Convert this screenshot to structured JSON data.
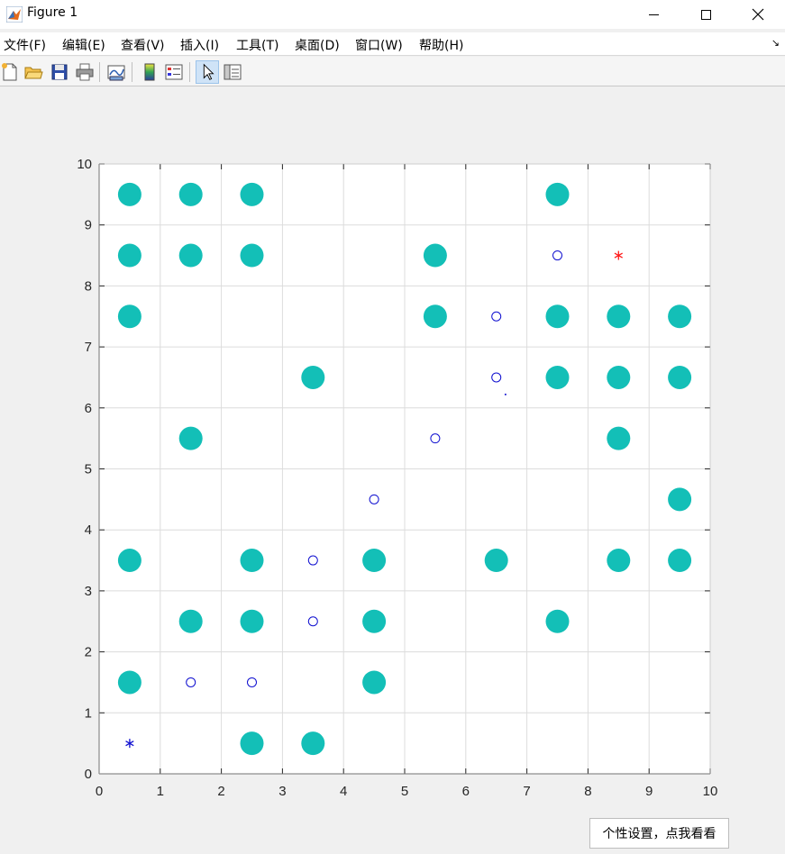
{
  "window": {
    "title": "Figure 1"
  },
  "menu": [
    {
      "label": "文件(F)",
      "name": "menu-file"
    },
    {
      "label": "编辑(E)",
      "name": "menu-edit"
    },
    {
      "label": "查看(V)",
      "name": "menu-view"
    },
    {
      "label": "插入(I)",
      "name": "menu-insert"
    },
    {
      "label": "工具(T)",
      "name": "menu-tools"
    },
    {
      "label": "桌面(D)",
      "name": "menu-desktop"
    },
    {
      "label": "窗口(W)",
      "name": "menu-window"
    },
    {
      "label": "帮助(H)",
      "name": "menu-help"
    }
  ],
  "toolbar": [
    {
      "icon": "new-figure-icon"
    },
    {
      "icon": "open-file-icon"
    },
    {
      "icon": "save-icon"
    },
    {
      "icon": "print-icon"
    },
    {
      "icon": "link-plot-icon"
    },
    {
      "icon": "colorbar-icon"
    },
    {
      "icon": "legend-icon"
    },
    {
      "icon": "pointer-icon"
    },
    {
      "icon": "property-inspector-icon"
    }
  ],
  "tooltip": {
    "text": "个性设置，点我看看"
  },
  "colors": {
    "obstacle": "#13bfb7",
    "path": "#1010d0",
    "start": "#1010d0",
    "goal": "#ff1a1a",
    "grid": "#dcdcdc"
  },
  "chart_data": {
    "type": "scatter",
    "xlim": [
      0,
      10
    ],
    "ylim": [
      0,
      10
    ],
    "xticks": [
      0,
      1,
      2,
      3,
      4,
      5,
      6,
      7,
      8,
      9,
      10
    ],
    "yticks": [
      0,
      1,
      2,
      3,
      4,
      5,
      6,
      7,
      8,
      9,
      10
    ],
    "grid": true,
    "series": [
      {
        "marker": "filled-circle",
        "points": [
          [
            0.5,
            9.5
          ],
          [
            1.5,
            9.5
          ],
          [
            2.5,
            9.5
          ],
          [
            7.5,
            9.5
          ],
          [
            0.5,
            8.5
          ],
          [
            1.5,
            8.5
          ],
          [
            2.5,
            8.5
          ],
          [
            5.5,
            8.5
          ],
          [
            0.5,
            7.5
          ],
          [
            5.5,
            7.5
          ],
          [
            7.5,
            7.5
          ],
          [
            8.5,
            7.5
          ],
          [
            9.5,
            7.5
          ],
          [
            3.5,
            6.5
          ],
          [
            7.5,
            6.5
          ],
          [
            8.5,
            6.5
          ],
          [
            9.5,
            6.5
          ],
          [
            1.5,
            5.5
          ],
          [
            8.5,
            5.5
          ],
          [
            9.5,
            4.5
          ],
          [
            0.5,
            3.5
          ],
          [
            2.5,
            3.5
          ],
          [
            4.5,
            3.5
          ],
          [
            6.5,
            3.5
          ],
          [
            8.5,
            3.5
          ],
          [
            9.5,
            3.5
          ],
          [
            1.5,
            2.5
          ],
          [
            2.5,
            2.5
          ],
          [
            4.5,
            2.5
          ],
          [
            7.5,
            2.5
          ],
          [
            0.5,
            1.5
          ],
          [
            4.5,
            1.5
          ],
          [
            2.5,
            0.5
          ],
          [
            3.5,
            0.5
          ]
        ]
      },
      {
        "marker": "open-circle",
        "points": [
          [
            1.5,
            1.5
          ],
          [
            2.5,
            1.5
          ],
          [
            3.5,
            2.5
          ],
          [
            3.5,
            3.5
          ],
          [
            4.5,
            4.5
          ],
          [
            5.5,
            5.5
          ],
          [
            6.5,
            6.5
          ],
          [
            6.5,
            7.5
          ],
          [
            7.5,
            8.5
          ]
        ]
      },
      {
        "marker": "dot",
        "points": [
          [
            6.65,
            6.22
          ]
        ]
      },
      {
        "marker": "star",
        "points": [
          [
            0.5,
            0.5
          ]
        ]
      },
      {
        "marker": "star-red",
        "points": [
          [
            8.5,
            8.5
          ]
        ]
      }
    ]
  }
}
